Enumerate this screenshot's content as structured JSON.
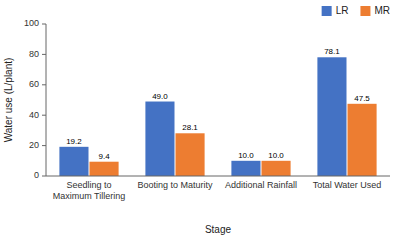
{
  "chart_data": {
    "type": "bar",
    "categories": [
      "Seedling to\nMaximum Tillering",
      "Booting to Maturity",
      "Additional Rainfall",
      "Total Water Used"
    ],
    "series": [
      {
        "name": "LR",
        "color": "#4472C4",
        "values": [
          19.2,
          49.0,
          10.0,
          78.1
        ],
        "value_labels": [
          "19.2",
          "49.0",
          "10.0",
          "78.1"
        ]
      },
      {
        "name": "MR",
        "color": "#ED7D31",
        "values": [
          9.4,
          28.1,
          10.0,
          47.5
        ],
        "value_labels": [
          "9.4",
          "28.1",
          "10.0",
          "47.5"
        ]
      }
    ],
    "xlabel": "Stage",
    "ylabel": "Water use (L/plant)",
    "ylim": [
      0,
      100
    ],
    "yticks": [
      0,
      20,
      40,
      60,
      80,
      100
    ],
    "grid": false,
    "legend": "upper right",
    "data_labels": true
  }
}
